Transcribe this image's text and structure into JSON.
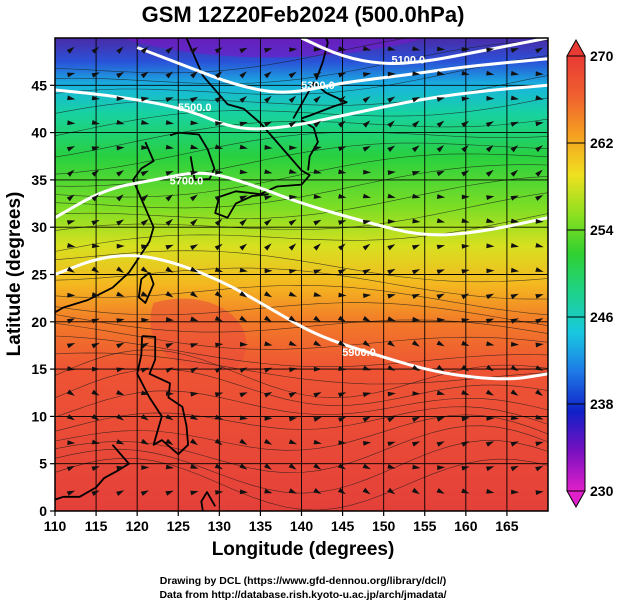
{
  "chart_data": {
    "type": "heatmap",
    "title": "GSM 12Z20Feb2024 (500.0hPa)",
    "xlabel": "Longitude (degrees)",
    "ylabel": "Latitude  (degrees)",
    "xlim": [
      110,
      170
    ],
    "ylim": [
      0,
      50
    ],
    "x_ticks": [
      "110",
      "115",
      "120",
      "125",
      "130",
      "135",
      "140",
      "145",
      "150",
      "155",
      "160",
      "165"
    ],
    "y_ticks": [
      "0",
      "5",
      "10",
      "15",
      "20",
      "25",
      "30",
      "35",
      "40",
      "45"
    ],
    "grid": true,
    "colorbar": {
      "min": 230,
      "max": 270,
      "ticks": [
        "230",
        "238",
        "246",
        "254",
        "262",
        "270"
      ],
      "colors": [
        "#e020c8",
        "#7a10c0",
        "#1020c8",
        "#1e78e6",
        "#18c8e0",
        "#1ed28c",
        "#30d030",
        "#8ee020",
        "#f0e020",
        "#f5a020",
        "#f06030",
        "#e83a34"
      ]
    },
    "contours": [
      {
        "label": "5100.0"
      },
      {
        "label": "5300.0"
      },
      {
        "label": "5500.0"
      },
      {
        "label": "5700.0"
      },
      {
        "label": "5900.0"
      }
    ]
  },
  "credits": {
    "line1": "Drawing by DCL (https://www.gfd-dennou.org/library/dcl/)",
    "line2": "Data from http://database.rish.kyoto-u.ac.jp/arch/jmadata/"
  }
}
